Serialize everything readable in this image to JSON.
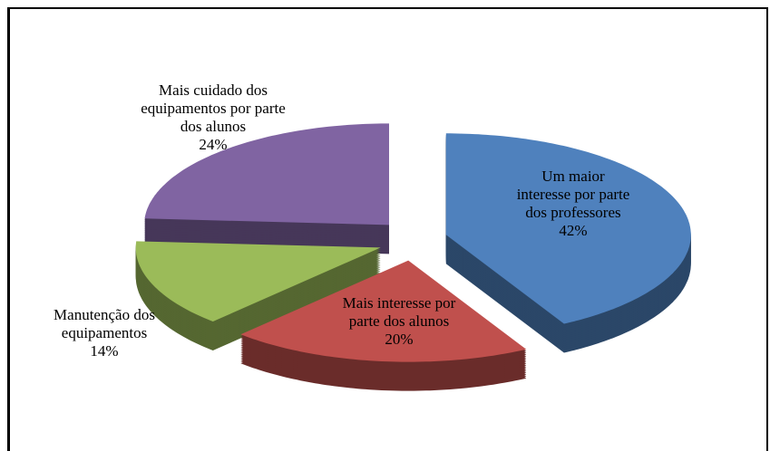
{
  "chart_data": {
    "type": "pie3d",
    "categories": [
      "Um maior interesse por parte dos professores",
      "Mais interesse por parte dos alunos",
      "Manutenção dos equipamentos",
      "Mais cuidado dos equipamentos por parte dos alunos"
    ],
    "values": [
      42,
      20,
      14,
      24
    ],
    "value_labels": [
      "42%",
      "20%",
      "14%",
      "24%"
    ],
    "colors": [
      "#4f81bd",
      "#c0504d",
      "#9bbb59",
      "#8064a2"
    ]
  }
}
